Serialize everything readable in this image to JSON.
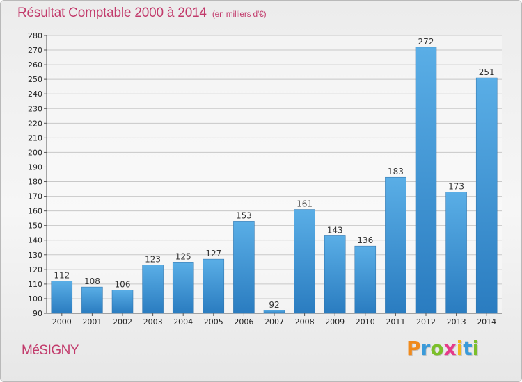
{
  "chart_data": {
    "type": "bar",
    "title": "Résultat Comptable 2000 à 2014",
    "subtitle": "(en milliers d'€)",
    "categories": [
      "2000",
      "2001",
      "2002",
      "2003",
      "2004",
      "2005",
      "2006",
      "2007",
      "2008",
      "2009",
      "2010",
      "2011",
      "2012",
      "2013",
      "2014"
    ],
    "values": [
      112,
      108,
      106,
      123,
      125,
      127,
      153,
      92,
      161,
      143,
      136,
      183,
      272,
      173,
      251
    ],
    "ylim": [
      90,
      280
    ],
    "yticks": [
      90,
      100,
      110,
      120,
      130,
      140,
      150,
      160,
      170,
      180,
      190,
      200,
      210,
      220,
      230,
      240,
      250,
      260,
      270,
      280
    ],
    "grid": true,
    "bar_color_top": "#5aaee6",
    "bar_color_bottom": "#2a7cc0"
  },
  "commune": "MéSIGNY",
  "logo": {
    "letters": [
      "P",
      "r",
      "o",
      "x",
      "i",
      "t",
      "i"
    ],
    "colors": [
      "#f08a1c",
      "#3a9ad9",
      "#7bbf2a",
      "#e63a8a",
      "#f0b81c",
      "#3a9ad9",
      "#7bbf2a"
    ]
  }
}
